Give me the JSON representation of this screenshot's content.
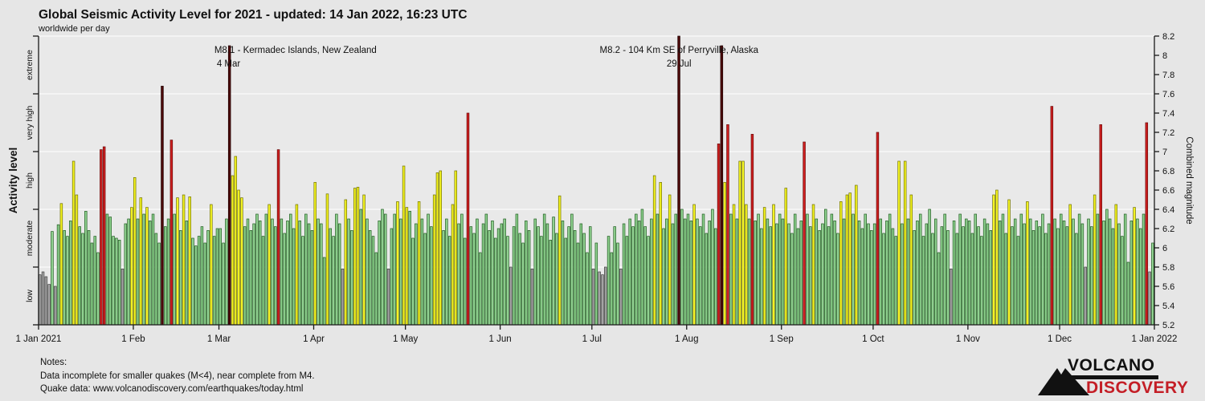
{
  "title": "Global Seismic Activity Level for 2021 - updated: 14 Jan 2022, 16:23 UTC",
  "subtitle": "worldwide per day",
  "notes": {
    "heading": "Notes:",
    "line1": "Data incomplete for smaller quakes (M<4), near complete from M4.",
    "line2": "Quake data: www.volcanodiscovery.com/earthquakes/today.html"
  },
  "logo": {
    "line1": "VOLCANO",
    "line2": "DISCOVERY"
  },
  "colors": {
    "background": "#e6e6e6",
    "plot_background": "#e9e9e9",
    "gridline": "#f8f8f8",
    "axis": "#1a1a1a",
    "text": "#111111",
    "logo_red": "#c41e26",
    "logo_black": "#111111",
    "levels": {
      "low": {
        "fill": "#a6a6a6",
        "stroke": "#3f3f3f"
      },
      "moderate": {
        "fill": "#90d290",
        "stroke": "#1f5c1f"
      },
      "high": {
        "fill": "#f5f522",
        "stroke": "#707000"
      },
      "very_high": {
        "fill": "#cf1f1f",
        "stroke": "#6b0a0a"
      },
      "extreme": {
        "fill": "#4c0909",
        "stroke": "#200303"
      }
    }
  },
  "chart_data": {
    "type": "bar",
    "title": "Global Seismic Activity Level for 2021",
    "xlabel": "",
    "ylabel_left": "Activity level",
    "ylabel_right": "Combined magnitude",
    "ylim": [
      5.2,
      8.2
    ],
    "right_tick_step": 0.2,
    "grid": true,
    "zone_boundaries": [
      5.8,
      6.4,
      7.0,
      7.6
    ],
    "zone_labels": [
      "low",
      "moderate",
      "high",
      "very high",
      "extreme"
    ],
    "levels": [
      {
        "name": "low",
        "max": 5.8
      },
      {
        "name": "moderate",
        "max": 6.4
      },
      {
        "name": "high",
        "max": 7.0
      },
      {
        "name": "very_high",
        "max": 7.6
      },
      {
        "name": "extreme",
        "max": 8.2
      }
    ],
    "end_label": "1 Jan 2022",
    "annotations": [
      {
        "line1": "M8.1 - Kermadec Islands, New Zealand",
        "line2": "4 Mar",
        "day_index": 62
      },
      {
        "line1": "M8.2 - 104 Km SE of Perryville, Alaska",
        "line2": "29 Jul",
        "day_index": 209
      }
    ],
    "months": [
      {
        "label": "1 Jan 2021",
        "days": 31,
        "values": [
          5.72,
          5.75,
          5.7,
          5.62,
          6.17,
          5.6,
          6.24,
          6.46,
          6.18,
          6.12,
          6.28,
          6.9,
          6.55,
          6.22,
          6.15,
          6.38,
          6.18,
          6.05,
          6.12,
          5.95,
          7.02,
          7.05,
          6.35,
          6.32,
          6.12,
          6.1,
          6.08,
          5.78,
          6.25,
          6.3,
          6.42
        ]
      },
      {
        "label": "1 Feb",
        "days": 28,
        "values": [
          6.73,
          6.3,
          6.52,
          6.35,
          6.42,
          6.28,
          6.35,
          6.15,
          6.05,
          7.68,
          6.22,
          6.3,
          7.12,
          6.35,
          6.52,
          6.18,
          6.55,
          6.28,
          6.53,
          6.1,
          6.02,
          6.12,
          6.22,
          6.05,
          6.18,
          6.45,
          6.12,
          6.2
        ]
      },
      {
        "label": "1 Mar",
        "days": 31,
        "values": [
          6.2,
          6.05,
          6.3,
          8.1,
          6.75,
          6.95,
          6.6,
          6.52,
          6.22,
          6.3,
          6.18,
          6.25,
          6.35,
          6.28,
          6.12,
          6.35,
          6.45,
          6.3,
          6.22,
          7.02,
          6.3,
          6.15,
          6.28,
          6.35,
          6.2,
          6.45,
          6.28,
          6.12,
          6.35,
          6.25,
          6.18
        ]
      },
      {
        "label": "1 Apr",
        "days": 30,
        "values": [
          6.68,
          6.3,
          6.25,
          5.9,
          6.56,
          6.2,
          6.12,
          6.35,
          6.25,
          5.78,
          6.5,
          6.3,
          6.18,
          6.62,
          6.63,
          6.4,
          6.55,
          6.3,
          6.18,
          6.12,
          5.95,
          6.28,
          6.4,
          6.35,
          5.78,
          6.2,
          6.35,
          6.48,
          6.3,
          6.85
        ]
      },
      {
        "label": "1 May",
        "days": 31,
        "values": [
          6.42,
          6.38,
          6.1,
          6.25,
          6.48,
          6.3,
          6.15,
          6.35,
          6.22,
          6.55,
          6.78,
          6.8,
          6.18,
          6.3,
          6.12,
          6.45,
          6.8,
          6.25,
          6.35,
          6.1,
          7.4,
          6.22,
          6.15,
          6.3,
          5.95,
          6.25,
          6.35,
          6.18,
          6.28,
          6.1,
          6.2
        ]
      },
      {
        "label": "1 Jun",
        "days": 30,
        "values": [
          6.25,
          6.3,
          6.12,
          5.8,
          6.22,
          6.35,
          6.15,
          6.05,
          6.28,
          6.18,
          5.78,
          6.3,
          6.22,
          6.12,
          6.35,
          6.25,
          6.08,
          6.32,
          6.15,
          6.54,
          6.28,
          6.1,
          6.22,
          6.35,
          6.18,
          6.05,
          6.25,
          6.15,
          5.95,
          6.22
        ]
      },
      {
        "label": "1 Jul",
        "days": 31,
        "values": [
          5.78,
          6.05,
          5.75,
          5.72,
          5.8,
          6.12,
          5.95,
          6.22,
          6.05,
          5.78,
          6.25,
          6.12,
          6.3,
          6.22,
          6.35,
          6.28,
          6.4,
          6.22,
          6.12,
          6.3,
          6.75,
          6.35,
          6.68,
          6.2,
          6.3,
          6.55,
          6.25,
          6.35,
          8.2,
          6.4,
          6.3
        ]
      },
      {
        "label": "1 Aug",
        "days": 31,
        "values": [
          6.35,
          6.28,
          6.45,
          6.3,
          6.22,
          6.35,
          6.15,
          6.28,
          6.4,
          6.2,
          7.08,
          8.1,
          6.68,
          7.28,
          6.35,
          6.45,
          6.3,
          6.9,
          6.9,
          6.45,
          6.3,
          7.18,
          6.28,
          6.35,
          6.2,
          6.42,
          6.3,
          6.22,
          6.45,
          6.25,
          6.35
        ]
      },
      {
        "label": "1 Sep",
        "days": 30,
        "values": [
          6.3,
          6.62,
          6.25,
          6.15,
          6.35,
          6.2,
          6.28,
          7.1,
          6.35,
          6.22,
          6.45,
          6.3,
          6.18,
          6.25,
          6.4,
          6.22,
          6.35,
          6.28,
          6.15,
          6.48,
          6.3,
          6.55,
          6.57,
          6.35,
          6.65,
          6.28,
          6.2,
          6.35,
          6.25,
          6.18
        ]
      },
      {
        "label": "1 Oct",
        "days": 31,
        "values": [
          6.25,
          7.2,
          6.3,
          6.15,
          6.28,
          6.35,
          6.2,
          6.12,
          6.9,
          6.25,
          6.9,
          6.3,
          6.55,
          6.18,
          6.28,
          6.35,
          6.12,
          6.25,
          6.4,
          6.15,
          6.3,
          5.95,
          6.22,
          6.35,
          6.18,
          5.78,
          6.28,
          6.15,
          6.35,
          6.22,
          6.3
        ]
      },
      {
        "label": "1 Nov",
        "days": 30,
        "values": [
          6.28,
          6.15,
          6.35,
          6.22,
          6.12,
          6.3,
          6.25,
          6.18,
          6.55,
          6.6,
          6.28,
          6.35,
          6.15,
          6.5,
          6.22,
          6.3,
          6.12,
          6.35,
          6.25,
          6.48,
          6.3,
          6.18,
          6.28,
          6.22,
          6.35,
          6.15,
          6.25,
          7.47,
          6.3,
          6.2
        ]
      },
      {
        "label": "1 Dec",
        "days": 31,
        "values": [
          6.35,
          6.28,
          6.22,
          6.45,
          6.3,
          6.15,
          6.35,
          6.25,
          5.8,
          6.3,
          6.22,
          6.55,
          6.35,
          7.28,
          6.28,
          6.4,
          6.3,
          6.2,
          6.45,
          6.25,
          6.12,
          6.35,
          5.85,
          6.28,
          6.42,
          6.3,
          6.2,
          6.35,
          7.3,
          5.75,
          6.05
        ]
      }
    ]
  }
}
